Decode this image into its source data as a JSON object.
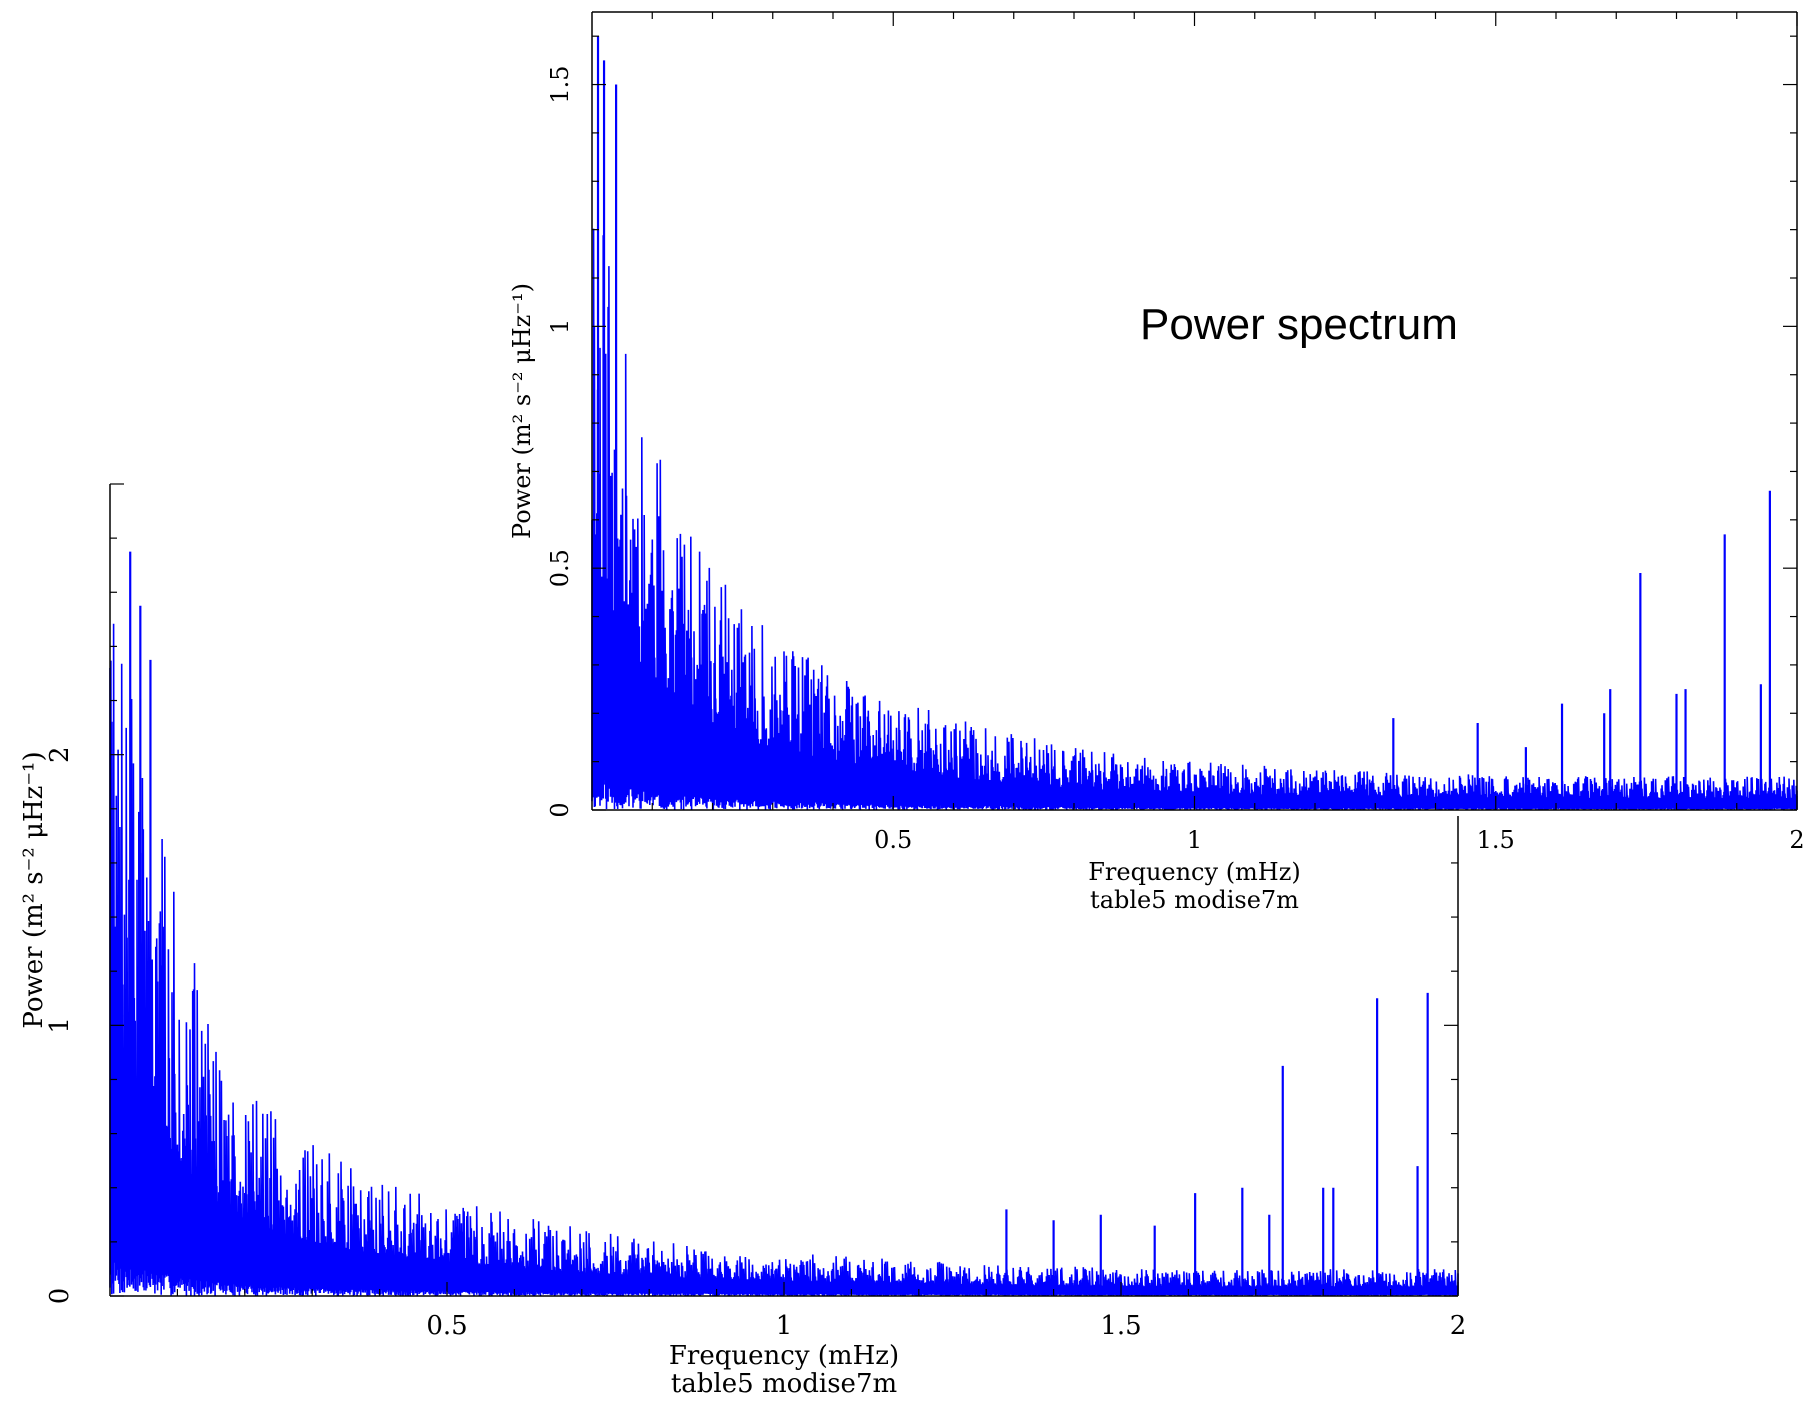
{
  "annotation": "Power spectrum",
  "chart_data": [
    {
      "type": "line",
      "panel": "back",
      "xlabel": "Frequency (mHz)",
      "subtitle": "table5 modise7m",
      "ylabel": "Power (m² s⁻² μHz⁻¹)",
      "xlim": [
        0.0,
        2.0
      ],
      "ylim": [
        0.0,
        3.0
      ],
      "x_ticks": [
        0.5,
        1,
        1.5,
        2
      ],
      "y_ticks": [
        0,
        1,
        2
      ],
      "x_tick_labels": [
        "0.5",
        "1",
        "1.5",
        "2"
      ],
      "y_tick_labels": [
        "0",
        "1",
        "2"
      ],
      "series_color": "#0000ff",
      "envelope": {
        "x": [
          0.0,
          0.05,
          0.1,
          0.15,
          0.2,
          0.3,
          0.4,
          0.5,
          0.6,
          0.7,
          0.8,
          0.9,
          1.0,
          1.2,
          1.4,
          1.6,
          1.8,
          2.0
        ],
        "y": [
          2.6,
          2.0,
          1.45,
          1.05,
          0.8,
          0.56,
          0.44,
          0.36,
          0.3,
          0.25,
          0.21,
          0.18,
          0.16,
          0.13,
          0.11,
          0.1,
          0.1,
          0.1
        ]
      },
      "peaks": {
        "x": [
          0.03,
          0.045,
          0.06,
          1.33,
          1.4,
          1.47,
          1.55,
          1.61,
          1.68,
          1.72,
          1.74,
          1.8,
          1.815,
          1.88,
          1.94,
          1.955
        ],
        "y": [
          2.75,
          2.55,
          2.35,
          0.32,
          0.28,
          0.3,
          0.26,
          0.38,
          0.4,
          0.3,
          0.85,
          0.4,
          0.4,
          1.1,
          0.48,
          1.12
        ]
      }
    },
    {
      "type": "line",
      "panel": "front",
      "xlabel": "Frequency (mHz)",
      "subtitle": "table5 modise7m",
      "ylabel": "Power (m² s⁻² μHz⁻¹)",
      "xlim": [
        0.0,
        2.0
      ],
      "ylim": [
        0.0,
        1.65
      ],
      "x_ticks": [
        0.5,
        1,
        1.5,
        2
      ],
      "y_ticks": [
        0,
        0.5,
        1,
        1.5
      ],
      "x_tick_labels": [
        "0.5",
        "1",
        "1.5",
        "2"
      ],
      "y_tick_labels": [
        "0",
        "0.5",
        "1",
        "1.5"
      ],
      "series_color": "#0000ff",
      "envelope": {
        "x": [
          0.0,
          0.05,
          0.1,
          0.15,
          0.2,
          0.3,
          0.4,
          0.5,
          0.6,
          0.7,
          0.8,
          0.9,
          1.0,
          1.2,
          1.4,
          1.6,
          1.8,
          2.0
        ],
        "y": [
          1.5,
          1.0,
          0.78,
          0.6,
          0.5,
          0.36,
          0.29,
          0.24,
          0.19,
          0.16,
          0.13,
          0.11,
          0.1,
          0.085,
          0.075,
          0.07,
          0.07,
          0.07
        ]
      },
      "peaks": {
        "x": [
          0.01,
          0.02,
          0.04,
          1.33,
          1.47,
          1.55,
          1.61,
          1.68,
          1.69,
          1.74,
          1.8,
          1.815,
          1.88,
          1.94,
          1.955
        ],
        "y": [
          1.6,
          1.55,
          1.5,
          0.19,
          0.18,
          0.13,
          0.22,
          0.2,
          0.25,
          0.49,
          0.24,
          0.25,
          0.57,
          0.26,
          0.66
        ]
      }
    }
  ]
}
